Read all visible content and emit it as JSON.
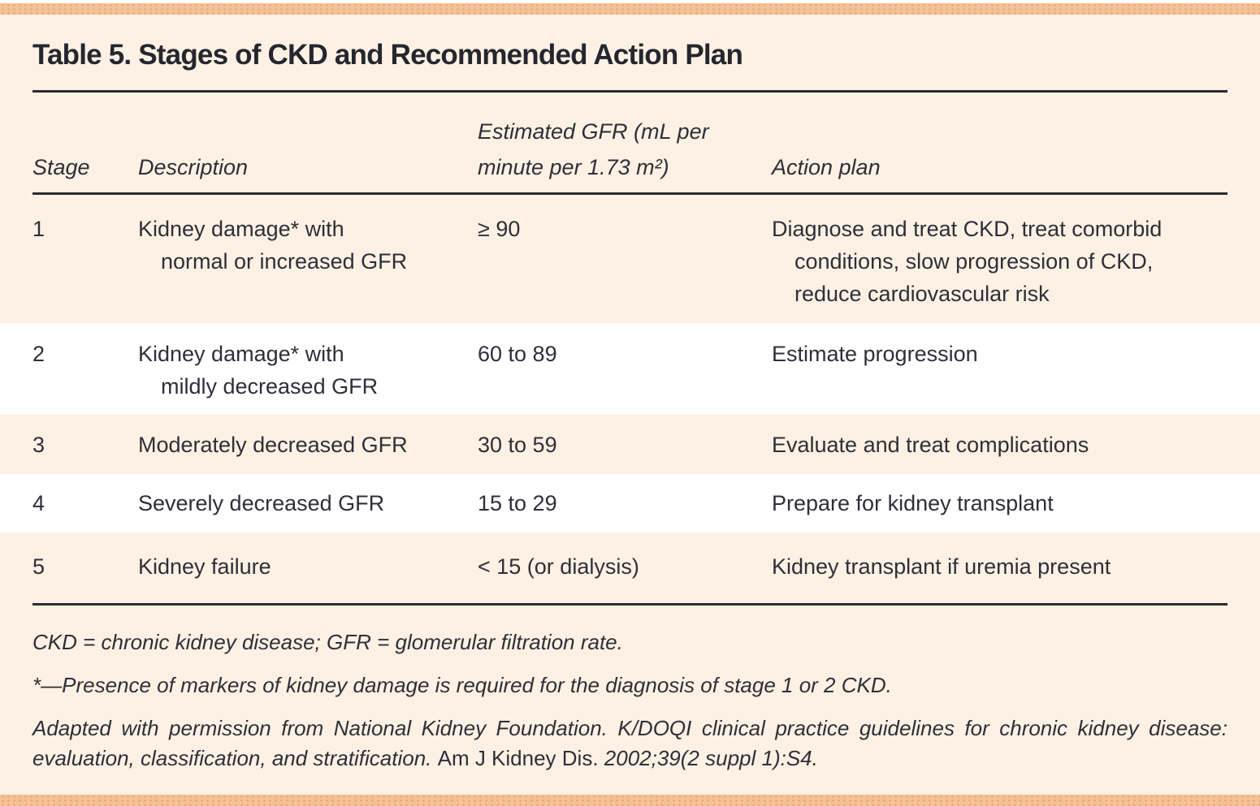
{
  "page": {
    "title": "Table 5. Stages of CKD and Recommended Action Plan",
    "colors": {
      "accent_bar": "#F5C197",
      "page_background": "#FCF1E4",
      "row_stripe": "#FFFFFF",
      "rule": "#2B2B33",
      "text": "#2F2F38"
    }
  },
  "table": {
    "columns": [
      "Stage",
      "Description",
      "Estimated GFR (mL per\nminute per 1.73 m²)",
      "Action plan"
    ],
    "rows": [
      {
        "stage": "1",
        "description": "Kidney damage* with\nnormal or increased GFR",
        "gfr": "≥ 90",
        "action": "Diagnose and treat CKD, treat comorbid\nconditions, slow progression of CKD,\nreduce cardiovascular risk"
      },
      {
        "stage": "2",
        "description": "Kidney damage* with\nmildly decreased GFR",
        "gfr": "60 to 89",
        "action": "Estimate progression"
      },
      {
        "stage": "3",
        "description": "Moderately decreased GFR",
        "gfr": "30 to 59",
        "action": "Evaluate and treat complications"
      },
      {
        "stage": "4",
        "description": "Severely decreased GFR",
        "gfr": "15 to 29",
        "action": "Prepare for kidney transplant"
      },
      {
        "stage": "5",
        "description": "Kidney failure",
        "gfr": "< 15 (or dialysis)",
        "action": "Kidney transplant if uremia present"
      }
    ]
  },
  "footnotes": {
    "abbreviations": "CKD = chronic kidney disease; GFR = glomerular filtration rate.",
    "marker_note": "*—Presence of markers of kidney damage is required for the diagnosis of stage 1 or 2 CKD.",
    "source_italic_1": "Adapted with permission from National Kidney Foundation. K/DOQI clinical practice guidelines for chronic kidney disease: evaluation, classification, and stratification. ",
    "source_roman": "Am J Kidney Dis.",
    "source_italic_2": " 2002;39(2 suppl 1):S4."
  }
}
